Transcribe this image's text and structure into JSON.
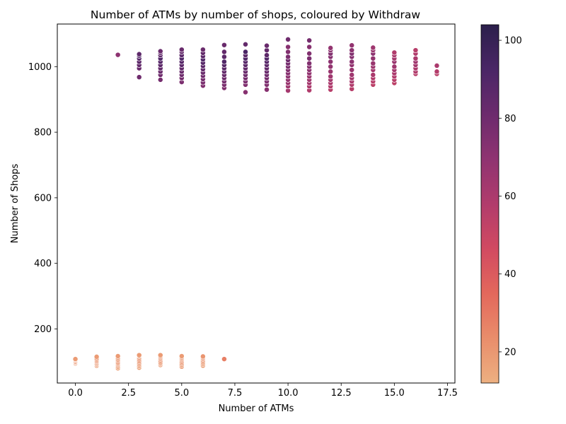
{
  "chart_data": {
    "type": "scatter",
    "title": "Number of ATMs by number of shops, coloured by Withdraw",
    "xlabel": "Number of ATMs",
    "ylabel": "Number of Shops",
    "xlim": [
      -0.85,
      17.85
    ],
    "ylim": [
      35,
      1130
    ],
    "xticks": [
      0.0,
      2.5,
      5.0,
      7.5,
      10.0,
      12.5,
      15.0,
      17.5
    ],
    "yticks": [
      200,
      400,
      600,
      800,
      1000
    ],
    "grid": false,
    "colorbar": {
      "label": "",
      "range": [
        12,
        104
      ],
      "ticks": [
        20,
        40,
        60,
        80,
        100
      ],
      "colormap": "flare",
      "stops": [
        "#edb081",
        "#e98d6b",
        "#e3685c",
        "#d14a61",
        "#b13c6c",
        "#8f3371",
        "#6c2b6d",
        "#4a2666",
        "#2b1f4b"
      ]
    },
    "series": [
      {
        "x": [
          0,
          0,
          0,
          0,
          0,
          0,
          1,
          1,
          1,
          1,
          1,
          1,
          1,
          1,
          2,
          2,
          2,
          2,
          2,
          2,
          2,
          2,
          2,
          3,
          3,
          3,
          3,
          3,
          3,
          3,
          3,
          3,
          4,
          4,
          4,
          4,
          4,
          4,
          4,
          4,
          5,
          5,
          5,
          5,
          5,
          5,
          5,
          5,
          6,
          6,
          6,
          6,
          6,
          6,
          6,
          7
        ],
        "y": [
          95,
          98,
          100,
          103,
          106,
          108,
          88,
          92,
          95,
          99,
          102,
          106,
          110,
          115,
          80,
          85,
          90,
          94,
          98,
          103,
          107,
          112,
          117,
          82,
          87,
          92,
          97,
          102,
          107,
          112,
          117,
          120,
          90,
          94,
          98,
          103,
          108,
          112,
          116,
          120,
          85,
          90,
          95,
          100,
          105,
          109,
          113,
          117,
          88,
          93,
          98,
          103,
          108,
          112,
          116,
          108
        ],
        "withdraw": [
          20,
          21,
          22,
          21,
          20,
          19,
          18,
          19,
          20,
          21,
          22,
          21,
          20,
          19,
          17,
          18,
          19,
          20,
          21,
          22,
          21,
          20,
          19,
          17,
          18,
          19,
          20,
          21,
          22,
          21,
          20,
          19,
          18,
          19,
          20,
          21,
          22,
          21,
          20,
          19,
          18,
          19,
          20,
          21,
          22,
          21,
          20,
          19,
          17,
          18,
          19,
          20,
          21,
          22,
          21,
          28
        ]
      },
      {
        "x": [
          2,
          3,
          3,
          3,
          3,
          3,
          3,
          3,
          4,
          4,
          4,
          4,
          4,
          4,
          4,
          4,
          4,
          4,
          5,
          5,
          5,
          5,
          5,
          5,
          5,
          5,
          5,
          5,
          5,
          6,
          6,
          6,
          6,
          6,
          6,
          6,
          6,
          6,
          6,
          6,
          6,
          7,
          7,
          7,
          7,
          7,
          7,
          7,
          7,
          7,
          7,
          7,
          7,
          8,
          8,
          8,
          8,
          8,
          8,
          8,
          8,
          8,
          8,
          8,
          8,
          8,
          9,
          9,
          9,
          9,
          9,
          9,
          9,
          9,
          9,
          9,
          9,
          9,
          9,
          10,
          10,
          10,
          10,
          10,
          10,
          10,
          10,
          10,
          10,
          10,
          10,
          10,
          10,
          11,
          11,
          11,
          11,
          11,
          11,
          11,
          11,
          11,
          11,
          11,
          11,
          11,
          12,
          12,
          12,
          12,
          12,
          12,
          12,
          12,
          12,
          12,
          12,
          12,
          13,
          13,
          13,
          13,
          13,
          13,
          13,
          13,
          13,
          13,
          13,
          13,
          14,
          14,
          14,
          14,
          14,
          14,
          14,
          14,
          14,
          14,
          14,
          15,
          15,
          15,
          15,
          15,
          15,
          15,
          15,
          15,
          15,
          16,
          16,
          16,
          16,
          16,
          16,
          16,
          16,
          17,
          17,
          17
        ],
        "y": [
          1036,
          968,
          995,
          1005,
          1015,
          1025,
          1033,
          1038,
          960,
          975,
          985,
          995,
          1005,
          1015,
          1025,
          1035,
          1042,
          1047,
          953,
          965,
          975,
          985,
          995,
          1005,
          1015,
          1025,
          1035,
          1045,
          1052,
          942,
          952,
          962,
          972,
          982,
          992,
          1002,
          1012,
          1022,
          1032,
          1042,
          1052,
          935,
          945,
          955,
          965,
          975,
          985,
          995,
          1005,
          1015,
          1030,
          1045,
          1066,
          922,
          945,
          955,
          965,
          975,
          985,
          995,
          1005,
          1015,
          1025,
          1035,
          1045,
          1068,
          930,
          945,
          955,
          965,
          975,
          985,
          995,
          1005,
          1015,
          1025,
          1035,
          1050,
          1064,
          927,
          940,
          950,
          960,
          970,
          980,
          990,
          1000,
          1010,
          1020,
          1030,
          1045,
          1060,
          1083,
          928,
          940,
          950,
          960,
          970,
          980,
          990,
          1000,
          1010,
          1025,
          1040,
          1060,
          1080,
          930,
          940,
          950,
          960,
          970,
          985,
          1000,
          1015,
          1030,
          1040,
          1050,
          1057,
          932,
          945,
          955,
          965,
          975,
          990,
          1005,
          1015,
          1030,
          1040,
          1050,
          1065,
          945,
          955,
          965,
          975,
          990,
          1000,
          1010,
          1025,
          1040,
          1050,
          1058,
          950,
          960,
          970,
          980,
          990,
          1000,
          1015,
          1025,
          1035,
          1043,
          978,
          985,
          995,
          1005,
          1015,
          1025,
          1040,
          1050,
          978,
          985,
          1003
        ],
        "withdraw": [
          70,
          80,
          82,
          84,
          86,
          88,
          90,
          86,
          78,
          80,
          82,
          84,
          86,
          88,
          90,
          86,
          84,
          82,
          76,
          78,
          80,
          82,
          84,
          86,
          88,
          90,
          86,
          84,
          82,
          74,
          76,
          78,
          80,
          82,
          84,
          86,
          88,
          90,
          86,
          84,
          82,
          74,
          76,
          78,
          80,
          82,
          84,
          86,
          88,
          90,
          86,
          84,
          82,
          72,
          74,
          76,
          78,
          80,
          82,
          84,
          86,
          88,
          90,
          86,
          92,
          84,
          72,
          74,
          76,
          78,
          80,
          82,
          84,
          86,
          88,
          90,
          86,
          84,
          82,
          62,
          64,
          66,
          68,
          70,
          72,
          74,
          76,
          78,
          80,
          76,
          74,
          72,
          80,
          58,
          60,
          62,
          64,
          66,
          68,
          70,
          72,
          74,
          76,
          74,
          72,
          78,
          56,
          58,
          60,
          62,
          64,
          66,
          68,
          70,
          72,
          74,
          70,
          68,
          56,
          58,
          60,
          62,
          64,
          66,
          68,
          70,
          72,
          74,
          70,
          68,
          54,
          56,
          58,
          60,
          62,
          64,
          66,
          68,
          70,
          66,
          64,
          54,
          56,
          58,
          60,
          62,
          64,
          66,
          62,
          60,
          58,
          56,
          58,
          60,
          62,
          64,
          60,
          58,
          56,
          55,
          57,
          60
        ]
      }
    ]
  }
}
